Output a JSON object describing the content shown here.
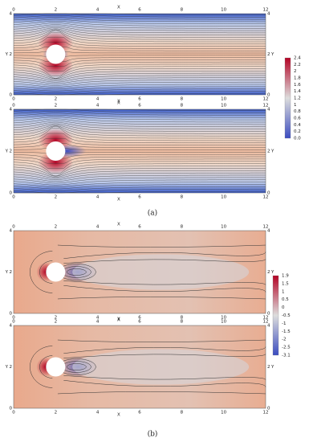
{
  "figure": {
    "panels": [
      {
        "label": "(a)",
        "plots": [
          {
            "x_axis_label": "X",
            "y_axis_label": "Y",
            "xticks": [
              "0",
              "2",
              "4",
              "6",
              "8",
              "10",
              "12"
            ],
            "yticks": [
              "0",
              "2",
              "4"
            ]
          },
          {
            "x_axis_label": "X",
            "y_axis_label": "Y",
            "xticks": [
              "0",
              "2",
              "4",
              "6",
              "8",
              "10",
              "12"
            ],
            "yticks": [
              "0",
              "2",
              "4"
            ]
          }
        ],
        "colorbar": {
          "ticks": [
            "2.4",
            "2.2",
            "2",
            "1.8",
            "1.6",
            "1.4",
            "1.2",
            "1",
            "0.8",
            "0.6",
            "0.4",
            "0.2",
            "0.0"
          ]
        }
      },
      {
        "label": "(b)",
        "plots": [
          {
            "x_axis_label": "X",
            "y_axis_label": "Y",
            "xticks": [
              "0",
              "2",
              "4",
              "6",
              "8",
              "10",
              "12"
            ],
            "yticks": [
              "0",
              "2",
              "4"
            ]
          },
          {
            "x_axis_label": "X",
            "y_axis_label": "Y",
            "xticks": [
              "0",
              "2",
              "4",
              "6",
              "8",
              "10",
              "12"
            ],
            "yticks": [
              "0",
              "2",
              "4"
            ]
          }
        ],
        "colorbar": {
          "ticks": [
            "1.9",
            "1.5",
            "1",
            "0.5",
            "0",
            "-0.5",
            "-1",
            "-1.5",
            "-2",
            "-2.5",
            "-3.1"
          ]
        }
      }
    ]
  }
}
